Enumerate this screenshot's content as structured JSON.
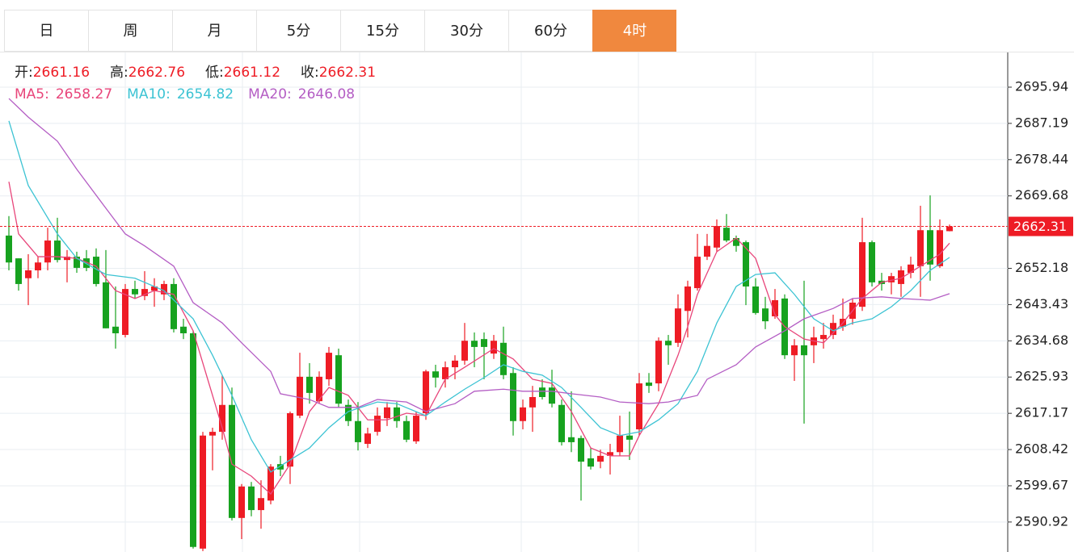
{
  "tabs": [
    "日",
    "周",
    "月",
    "5分",
    "15分",
    "30分",
    "60分",
    "4时"
  ],
  "active_tab": 7,
  "chart_data": {
    "type": "candlestick",
    "up_color": "#ee1c25",
    "down_color": "#17a21f",
    "header_labels": [
      "开:",
      "高:",
      "低:",
      "收:"
    ],
    "ylim": [
      2583.68,
      2704.32
    ],
    "yticks": [
      2590.92,
      2599.67,
      2608.42,
      2617.17,
      2625.93,
      2634.68,
      2643.43,
      2652.18,
      2669.68,
      2678.44,
      2687.19,
      2695.94
    ],
    "grid": true,
    "open": [
      2660.1,
      2654.6,
      2649.8,
      2651.7,
      2653.6,
      2658.9,
      2654.2,
      2655.0,
      2654.6,
      2655.0,
      2648.8,
      2638.1,
      2636.1,
      2647.2,
      2645.5,
      2646.8,
      2645.9,
      2648.4,
      2638.1,
      2636.5,
      2584.5,
      2611.8,
      2612.7,
      2619.2,
      2591.9,
      2599.5,
      2593.8,
      2596.1,
      2604.9,
      2604.3,
      2616.6,
      2626.0,
      2620.1,
      2625.4,
      2631.2,
      2619.2,
      2615.3,
      2609.8,
      2612.7,
      2616.0,
      2618.6,
      2615.3,
      2610.4,
      2617.2,
      2627.3,
      2625.4,
      2628.3,
      2629.9,
      2634.7,
      2635.1,
      2631.6,
      2634.2,
      2626.9,
      2615.3,
      2618.6,
      2623.4,
      2623.4,
      2619.2,
      2611.4,
      2611.2,
      2606.3,
      2605.5,
      2606.9,
      2607.8,
      2611.8,
      2613.3,
      2624.6,
      2624.4,
      2634.7,
      2634.2,
      2641.9,
      2647.4,
      2655.0,
      2657.2,
      2662.0,
      2659.5,
      2658.5,
      2647.8,
      2642.5,
      2640.6,
      2644.9,
      2631.2,
      2633.6,
      2633.6,
      2635.1,
      2636.1,
      2638.1,
      2640.0,
      2642.9,
      2658.5,
      2649.2,
      2648.8,
      2648.4,
      2651.1,
      2652.7,
      2661.4,
      2652.7,
      2661.16
    ],
    "high": [
      2664.8,
      2654.6,
      2655.6,
      2655.0,
      2662.0,
      2664.4,
      2656.6,
      2656.2,
      2656.6,
      2657.0,
      2656.6,
      2647.8,
      2648.4,
      2649.2,
      2651.5,
      2649.8,
      2649.2,
      2649.8,
      2640.0,
      2637.1,
      2612.7,
      2613.7,
      2626.4,
      2623.4,
      2600.1,
      2600.6,
      2601.0,
      2604.9,
      2606.9,
      2617.6,
      2631.8,
      2629.3,
      2627.3,
      2633.2,
      2632.8,
      2620.5,
      2619.9,
      2613.7,
      2618.6,
      2619.9,
      2619.9,
      2616.6,
      2617.6,
      2627.7,
      2628.9,
      2629.7,
      2631.2,
      2639.0,
      2636.7,
      2636.7,
      2636.1,
      2638.1,
      2628.3,
      2620.5,
      2623.8,
      2625.4,
      2627.7,
      2620.5,
      2622.5,
      2611.8,
      2608.8,
      2608.4,
      2609.8,
      2616.6,
      2617.6,
      2626.9,
      2626.9,
      2635.5,
      2636.1,
      2645.9,
      2649.2,
      2660.5,
      2660.5,
      2664.0,
      2665.3,
      2660.1,
      2658.9,
      2649.8,
      2645.3,
      2647.2,
      2645.9,
      2635.1,
      2649.2,
      2638.1,
      2639.0,
      2641.0,
      2644.9,
      2644.9,
      2664.4,
      2658.9,
      2651.1,
      2651.1,
      2652.7,
      2655.0,
      2667.3,
      2669.8,
      2664.0,
      2662.76
    ],
    "low": [
      2651.7,
      2646.8,
      2643.3,
      2649.8,
      2651.7,
      2653.6,
      2648.8,
      2651.1,
      2651.5,
      2647.8,
      2637.7,
      2632.8,
      2635.5,
      2644.9,
      2644.5,
      2642.9,
      2644.5,
      2636.7,
      2635.1,
      2584.5,
      2583.9,
      2603.4,
      2610.8,
      2591.3,
      2586.8,
      2592.3,
      2589.3,
      2595.2,
      2602.0,
      2600.1,
      2616.0,
      2619.5,
      2619.5,
      2623.8,
      2618.6,
      2614.1,
      2608.2,
      2608.8,
      2611.8,
      2614.1,
      2613.7,
      2610.2,
      2609.8,
      2615.6,
      2623.4,
      2623.4,
      2625.4,
      2628.9,
      2628.3,
      2625.4,
      2630.3,
      2625.4,
      2611.8,
      2613.3,
      2612.7,
      2620.5,
      2618.6,
      2609.4,
      2607.8,
      2596.1,
      2603.6,
      2603.9,
      2602.4,
      2606.9,
      2605.9,
      2611.8,
      2622.1,
      2622.5,
      2628.9,
      2633.2,
      2635.5,
      2646.8,
      2654.2,
      2656.2,
      2658.5,
      2656.2,
      2643.3,
      2641.0,
      2637.5,
      2640.0,
      2630.3,
      2625.0,
      2614.7,
      2629.3,
      2632.8,
      2635.1,
      2637.1,
      2638.6,
      2641.9,
      2647.8,
      2646.8,
      2645.9,
      2645.3,
      2649.8,
      2645.3,
      2649.2,
      2652.3,
      2661.12
    ],
    "close": [
      2653.6,
      2648.4,
      2651.7,
      2653.6,
      2658.9,
      2654.2,
      2655.0,
      2652.3,
      2652.3,
      2648.4,
      2637.7,
      2636.5,
      2647.2,
      2645.9,
      2647.2,
      2647.8,
      2648.4,
      2637.5,
      2636.5,
      2584.9,
      2611.8,
      2612.7,
      2619.2,
      2591.9,
      2599.5,
      2593.8,
      2596.7,
      2604.3,
      2603.6,
      2617.2,
      2626.0,
      2622.1,
      2626.0,
      2631.8,
      2619.5,
      2615.3,
      2610.2,
      2612.3,
      2616.6,
      2618.6,
      2615.3,
      2610.8,
      2616.6,
      2627.3,
      2625.8,
      2628.3,
      2629.9,
      2634.7,
      2633.2,
      2633.2,
      2634.7,
      2626.4,
      2615.3,
      2618.6,
      2621.1,
      2621.1,
      2619.5,
      2610.2,
      2610.2,
      2605.5,
      2604.3,
      2606.9,
      2607.8,
      2611.8,
      2610.8,
      2624.4,
      2623.8,
      2634.7,
      2633.6,
      2642.5,
      2647.8,
      2655.0,
      2657.6,
      2662.4,
      2658.9,
      2657.6,
      2647.8,
      2641.4,
      2639.4,
      2644.5,
      2631.2,
      2633.6,
      2631.2,
      2635.5,
      2636.1,
      2639.0,
      2640.0,
      2643.9,
      2658.5,
      2648.8,
      2648.4,
      2650.3,
      2651.7,
      2653.1,
      2661.4,
      2653.1,
      2661.4,
      2662.31
    ],
    "series": [
      {
        "name": "MA5:",
        "color": "#e8457a",
        "x": [
          0,
          1,
          3,
          5,
          7,
          9,
          11,
          13,
          15,
          17,
          19,
          20,
          22,
          23,
          25,
          27,
          29,
          31,
          33,
          35,
          37,
          39,
          41,
          43,
          45,
          47,
          50,
          52,
          54,
          56,
          58,
          60,
          62,
          64,
          65,
          67,
          69,
          70,
          71,
          73,
          75,
          77,
          79,
          80,
          82,
          84,
          86,
          88,
          90,
          92,
          94,
          96,
          97
        ],
        "values": [
          2673.1,
          2660.5,
          2655.0,
          2655.0,
          2654.6,
          2652.7,
          2646.8,
          2644.9,
          2646.8,
          2645.9,
          2637.1,
          2629.3,
          2613.7,
          2604.9,
          2602.0,
          2597.7,
          2604.9,
          2617.6,
          2623.4,
          2621.5,
          2615.6,
          2615.6,
          2617.2,
          2616.6,
          2625.4,
          2628.3,
          2632.8,
          2630.3,
          2625.4,
          2624.4,
          2617.6,
          2608.8,
          2606.9,
          2606.9,
          2611.8,
          2619.5,
          2631.2,
          2638.1,
          2645.9,
          2656.2,
          2659.5,
          2654.6,
          2641.0,
          2638.1,
          2635.1,
          2634.2,
          2639.0,
          2644.9,
          2648.8,
          2649.8,
          2652.7,
          2655.6,
          2658.27
        ]
      },
      {
        "name": "MA10:",
        "color": "#3cc3d3",
        "x": [
          0,
          2,
          5,
          7,
          10,
          13,
          16,
          19,
          21,
          23,
          25,
          27,
          29,
          31,
          33,
          35,
          38,
          40,
          43,
          45,
          47,
          49,
          51,
          53,
          55,
          57,
          59,
          61,
          63,
          65,
          67,
          69,
          71,
          73,
          75,
          77,
          79,
          81,
          83,
          85,
          87,
          89,
          91,
          93,
          95,
          97
        ],
        "values": [
          2687.8,
          2672.2,
          2660.5,
          2654.6,
          2650.7,
          2649.8,
          2646.8,
          2640.0,
          2631.2,
          2621.5,
          2610.8,
          2603.0,
          2605.9,
          2608.8,
          2613.7,
          2617.6,
          2619.9,
          2619.5,
          2616.6,
          2619.9,
          2623.0,
          2625.8,
          2628.9,
          2627.3,
          2626.4,
          2623.4,
          2618.6,
          2613.7,
          2611.8,
          2612.7,
          2615.6,
          2619.5,
          2627.3,
          2639.0,
          2647.8,
          2650.7,
          2651.1,
          2645.9,
          2640.0,
          2637.1,
          2639.0,
          2640.0,
          2642.9,
          2646.8,
          2651.7,
          2654.82
        ]
      },
      {
        "name": "MA20:",
        "color": "#b45dc4",
        "x": [
          0,
          2,
          5,
          7,
          10,
          12,
          14,
          17,
          19,
          22,
          24,
          27,
          28,
          31,
          33,
          36,
          38,
          41,
          43,
          46,
          48,
          51,
          53,
          56,
          58,
          61,
          63,
          66,
          68,
          71,
          72,
          75,
          77,
          80,
          82,
          85,
          87,
          90,
          92,
          95,
          97
        ],
        "values": [
          2693.2,
          2688.7,
          2682.9,
          2676.1,
          2666.7,
          2660.5,
          2657.6,
          2652.7,
          2643.9,
          2639.0,
          2634.2,
          2627.3,
          2621.9,
          2620.5,
          2618.6,
          2618.6,
          2620.5,
          2619.9,
          2617.6,
          2619.5,
          2622.5,
          2623.0,
          2622.5,
          2622.5,
          2621.9,
          2621.1,
          2619.9,
          2619.5,
          2619.9,
          2621.5,
          2625.4,
          2628.9,
          2633.2,
          2637.1,
          2640.0,
          2642.5,
          2644.9,
          2645.3,
          2644.9,
          2644.5,
          2646.08
        ]
      }
    ]
  }
}
